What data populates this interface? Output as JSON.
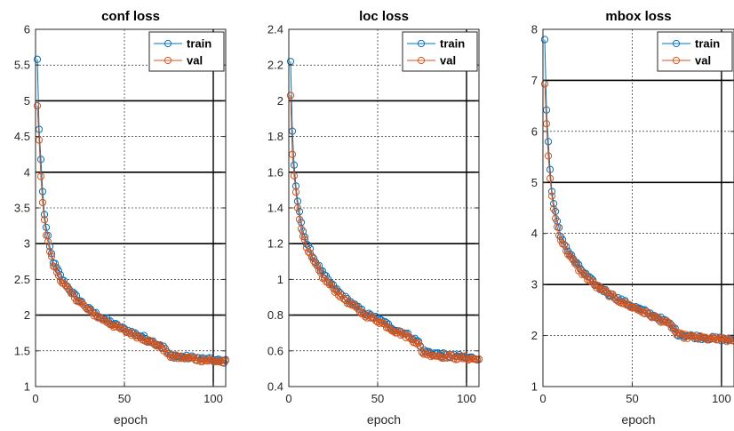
{
  "chart_data": [
    {
      "type": "line",
      "title": "conf loss",
      "xlabel": "epoch",
      "ylabel": "",
      "xlim": [
        0,
        107
      ],
      "ylim": [
        1,
        6
      ],
      "xticks": [
        0,
        50,
        100
      ],
      "yticks": [
        1,
        1.5,
        2,
        2.5,
        3,
        3.5,
        4,
        4.5,
        5,
        5.5,
        6
      ],
      "ytick_labels": [
        "1",
        "1.5",
        "2",
        "2.5",
        "3",
        "3.5",
        "4",
        "4.5",
        "5",
        "5.5",
        "6"
      ],
      "legend": {
        "position": "top-right",
        "entries": [
          "train",
          "val"
        ]
      },
      "grid": true,
      "series": [
        {
          "name": "train",
          "color": "#0072BD",
          "key_points": [
            [
              1,
              5.58
            ],
            [
              2,
              4.6
            ],
            [
              3,
              4.18
            ],
            [
              4,
              3.72
            ],
            [
              5,
              3.42
            ],
            [
              6,
              3.22
            ],
            [
              8,
              2.95
            ],
            [
              10,
              2.75
            ],
            [
              15,
              2.5
            ],
            [
              20,
              2.33
            ],
            [
              25,
              2.2
            ],
            [
              30,
              2.08
            ],
            [
              35,
              2.0
            ],
            [
              40,
              1.93
            ],
            [
              45,
              1.86
            ],
            [
              50,
              1.8
            ],
            [
              55,
              1.75
            ],
            [
              60,
              1.7
            ],
            [
              65,
              1.64
            ],
            [
              70,
              1.58
            ],
            [
              73,
              1.53
            ],
            [
              75,
              1.44
            ],
            [
              80,
              1.42
            ],
            [
              85,
              1.41
            ],
            [
              90,
              1.4
            ],
            [
              95,
              1.38
            ],
            [
              100,
              1.37
            ],
            [
              107,
              1.35
            ]
          ]
        },
        {
          "name": "val",
          "color": "#D95319",
          "key_points": [
            [
              1,
              4.93
            ],
            [
              2,
              4.45
            ],
            [
              3,
              3.94
            ],
            [
              4,
              3.6
            ],
            [
              5,
              3.35
            ],
            [
              6,
              3.12
            ],
            [
              8,
              2.9
            ],
            [
              10,
              2.7
            ],
            [
              15,
              2.46
            ],
            [
              20,
              2.3
            ],
            [
              25,
              2.18
            ],
            [
              30,
              2.06
            ],
            [
              35,
              1.98
            ],
            [
              40,
              1.91
            ],
            [
              45,
              1.84
            ],
            [
              50,
              1.78
            ],
            [
              55,
              1.73
            ],
            [
              60,
              1.68
            ],
            [
              65,
              1.62
            ],
            [
              70,
              1.56
            ],
            [
              73,
              1.51
            ],
            [
              75,
              1.43
            ],
            [
              80,
              1.41
            ],
            [
              85,
              1.4
            ],
            [
              90,
              1.39
            ],
            [
              95,
              1.37
            ],
            [
              100,
              1.36
            ],
            [
              107,
              1.34
            ]
          ]
        }
      ]
    },
    {
      "type": "line",
      "title": "loc loss",
      "xlabel": "epoch",
      "ylabel": "",
      "xlim": [
        0,
        107
      ],
      "ylim": [
        0.4,
        2.4
      ],
      "xticks": [
        0,
        50,
        100
      ],
      "yticks": [
        0.4,
        0.6,
        0.8,
        1.0,
        1.2,
        1.4,
        1.6,
        1.8,
        2.0,
        2.2,
        2.4
      ],
      "ytick_labels": [
        "0.4",
        "0.6",
        "0.8",
        "1",
        "1.2",
        "1.4",
        "1.6",
        "1.8",
        "2",
        "2.2",
        "2.4"
      ],
      "legend": {
        "position": "top-right",
        "entries": [
          "train",
          "val"
        ]
      },
      "grid": true,
      "series": [
        {
          "name": "train",
          "color": "#0072BD",
          "key_points": [
            [
              1,
              2.22
            ],
            [
              2,
              1.83
            ],
            [
              3,
              1.64
            ],
            [
              4,
              1.52
            ],
            [
              5,
              1.44
            ],
            [
              6,
              1.37
            ],
            [
              8,
              1.28
            ],
            [
              10,
              1.2
            ],
            [
              15,
              1.1
            ],
            [
              20,
              1.02
            ],
            [
              25,
              0.96
            ],
            [
              30,
              0.91
            ],
            [
              35,
              0.87
            ],
            [
              40,
              0.83
            ],
            [
              45,
              0.8
            ],
            [
              50,
              0.78
            ],
            [
              55,
              0.75
            ],
            [
              60,
              0.72
            ],
            [
              65,
              0.7
            ],
            [
              70,
              0.67
            ],
            [
              73,
              0.65
            ],
            [
              75,
              0.6
            ],
            [
              80,
              0.59
            ],
            [
              85,
              0.58
            ],
            [
              90,
              0.57
            ],
            [
              95,
              0.57
            ],
            [
              100,
              0.56
            ],
            [
              107,
              0.56
            ]
          ]
        },
        {
          "name": "val",
          "color": "#D95319",
          "key_points": [
            [
              1,
              2.03
            ],
            [
              2,
              1.7
            ],
            [
              3,
              1.58
            ],
            [
              4,
              1.48
            ],
            [
              5,
              1.4
            ],
            [
              6,
              1.34
            ],
            [
              8,
              1.25
            ],
            [
              10,
              1.17
            ],
            [
              15,
              1.08
            ],
            [
              20,
              1.0
            ],
            [
              25,
              0.95
            ],
            [
              30,
              0.9
            ],
            [
              35,
              0.86
            ],
            [
              40,
              0.82
            ],
            [
              45,
              0.79
            ],
            [
              50,
              0.77
            ],
            [
              55,
              0.74
            ],
            [
              60,
              0.71
            ],
            [
              65,
              0.69
            ],
            [
              70,
              0.66
            ],
            [
              73,
              0.64
            ],
            [
              75,
              0.59
            ],
            [
              80,
              0.58
            ],
            [
              85,
              0.57
            ],
            [
              90,
              0.57
            ],
            [
              95,
              0.56
            ],
            [
              100,
              0.56
            ],
            [
              107,
              0.55
            ]
          ]
        }
      ]
    },
    {
      "type": "line",
      "title": "mbox loss",
      "xlabel": "epoch",
      "ylabel": "",
      "xlim": [
        0,
        107
      ],
      "ylim": [
        1,
        8
      ],
      "xticks": [
        0,
        50,
        100
      ],
      "yticks": [
        1,
        2,
        3,
        4,
        5,
        6,
        7,
        8
      ],
      "ytick_labels": [
        "1",
        "2",
        "3",
        "4",
        "5",
        "6",
        "7",
        "8"
      ],
      "legend": {
        "position": "top-right",
        "entries": [
          "train",
          "val"
        ]
      },
      "grid": true,
      "series": [
        {
          "name": "train",
          "color": "#0072BD",
          "key_points": [
            [
              1,
              7.8
            ],
            [
              2,
              6.42
            ],
            [
              3,
              5.8
            ],
            [
              4,
              5.25
            ],
            [
              5,
              4.86
            ],
            [
              6,
              4.58
            ],
            [
              8,
              4.22
            ],
            [
              10,
              3.95
            ],
            [
              15,
              3.6
            ],
            [
              20,
              3.35
            ],
            [
              25,
              3.15
            ],
            [
              30,
              2.98
            ],
            [
              35,
              2.87
            ],
            [
              40,
              2.76
            ],
            [
              45,
              2.66
            ],
            [
              50,
              2.58
            ],
            [
              55,
              2.5
            ],
            [
              60,
              2.42
            ],
            [
              65,
              2.34
            ],
            [
              70,
              2.25
            ],
            [
              73,
              2.17
            ],
            [
              75,
              2.04
            ],
            [
              80,
              2.0
            ],
            [
              85,
              1.98
            ],
            [
              90,
              1.96
            ],
            [
              95,
              1.94
            ],
            [
              100,
              1.93
            ],
            [
              107,
              1.91
            ]
          ]
        },
        {
          "name": "val",
          "color": "#D95319",
          "key_points": [
            [
              1,
              6.93
            ],
            [
              2,
              6.15
            ],
            [
              3,
              5.52
            ],
            [
              4,
              5.07
            ],
            [
              5,
              4.76
            ],
            [
              6,
              4.47
            ],
            [
              8,
              4.12
            ],
            [
              10,
              3.88
            ],
            [
              15,
              3.55
            ],
            [
              20,
              3.3
            ],
            [
              25,
              3.12
            ],
            [
              30,
              2.96
            ],
            [
              35,
              2.85
            ],
            [
              40,
              2.74
            ],
            [
              45,
              2.64
            ],
            [
              50,
              2.56
            ],
            [
              55,
              2.48
            ],
            [
              60,
              2.4
            ],
            [
              65,
              2.32
            ],
            [
              70,
              2.23
            ],
            [
              73,
              2.15
            ],
            [
              75,
              2.02
            ],
            [
              80,
              1.98
            ],
            [
              85,
              1.96
            ],
            [
              90,
              1.95
            ],
            [
              95,
              1.93
            ],
            [
              100,
              1.92
            ],
            [
              107,
              1.9
            ]
          ]
        }
      ]
    }
  ]
}
